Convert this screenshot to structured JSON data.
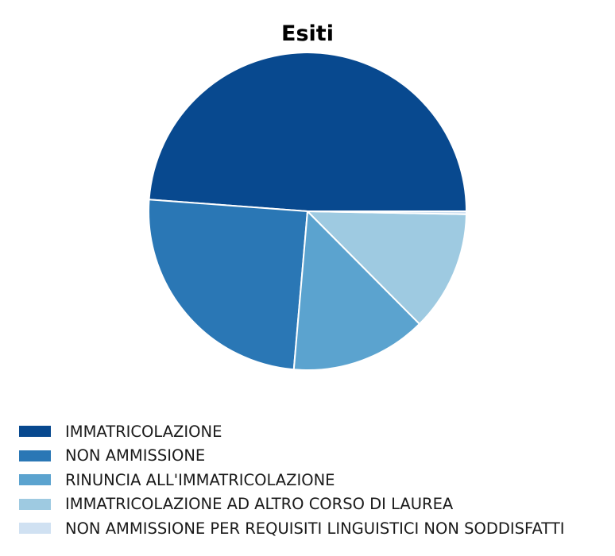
{
  "chart_data": {
    "type": "pie",
    "title": "Esiti",
    "series": [
      {
        "name": "",
        "values": [
          49.8,
          25.3,
          14.1,
          12.5,
          0.3
        ]
      }
    ],
    "categories": [
      "IMMATRICOLAZIONE",
      "NON AMMISSIONE",
      "RINUNCIA ALL'IMMATRICOLAZIONE",
      "IMMATRICOLAZIONE AD ALTRO CORSO DI LAUREA",
      "NON AMMISSIONE PER REQUISITI LINGUISTICI NON SODDISFATTI"
    ],
    "colors": [
      "#08498f",
      "#2a77b5",
      "#5ba3cf",
      "#9ecae1",
      "#d0e1f2"
    ],
    "slice_edge_color": "#ffffff",
    "start_angle_deg": 0,
    "direction": "counterclockwise",
    "legend_position": "bottom-left"
  }
}
